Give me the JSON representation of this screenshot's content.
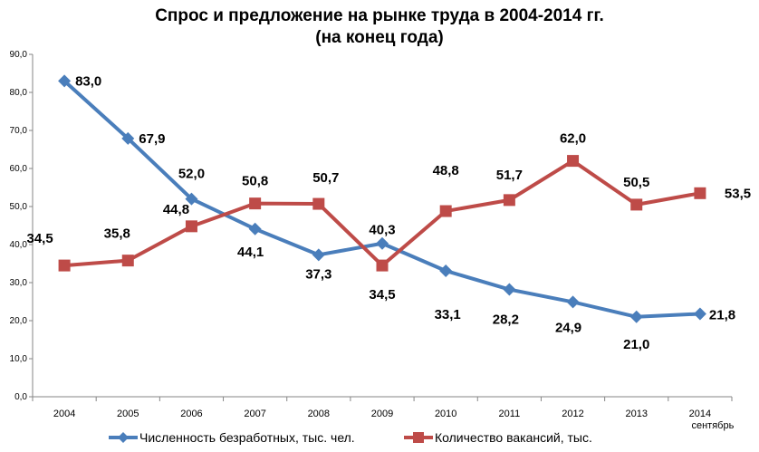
{
  "chart_data": {
    "type": "line",
    "title_line1": "Спрос и предложение на рынке труда в 2004-2014 гг.",
    "title_line2": "(на конец года)",
    "categories": [
      "2004",
      "2005",
      "2006",
      "2007",
      "2008",
      "2009",
      "2010",
      "2011",
      "2012",
      "2013",
      "2014"
    ],
    "category_note": "сентябрь",
    "ylim": [
      0,
      90
    ],
    "yticks": [
      "0,0",
      "10,0",
      "20,0",
      "30,0",
      "40,0",
      "50,0",
      "60,0",
      "70,0",
      "80,0",
      "90,0"
    ],
    "grid": false,
    "legend_position": "bottom",
    "series": [
      {
        "name": "Численность безработных, тыс. чел.",
        "values": [
          83.0,
          67.9,
          52.0,
          44.1,
          37.3,
          40.3,
          33.1,
          28.2,
          24.9,
          21.0,
          21.8
        ],
        "labels": [
          "83,0",
          "67,9",
          "52,0",
          "44,1",
          "37,3",
          "40,3",
          "33,1",
          "28,2",
          "24,9",
          "21,0",
          "21,8"
        ],
        "color": "#4a7ebb",
        "marker": "diamond"
      },
      {
        "name": "Количество вакансий, тыс.",
        "values": [
          34.5,
          35.8,
          44.8,
          50.8,
          50.7,
          34.5,
          48.8,
          51.7,
          62.0,
          50.5,
          53.5
        ],
        "labels": [
          "34,5",
          "35,8",
          "44,8",
          "50,8",
          "50,7",
          "34,5",
          "48,8",
          "51,7",
          "62,0",
          "50,5",
          "53,5"
        ],
        "color": "#be4b48",
        "marker": "square"
      }
    ]
  }
}
